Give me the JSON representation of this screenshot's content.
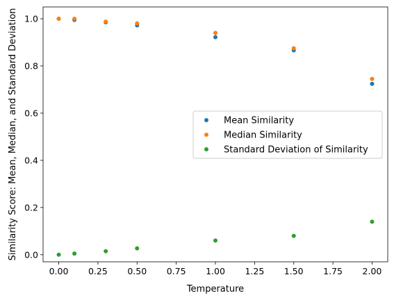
{
  "chart_data": {
    "type": "scatter",
    "title": "",
    "xlabel": "Temperature",
    "ylabel": "Similarity Score: Mean, Median, and Standard Deviation",
    "xlim": [
      -0.1,
      2.1
    ],
    "ylim": [
      -0.03,
      1.05
    ],
    "xticks": [
      "0.00",
      "0.25",
      "0.50",
      "0.75",
      "1.00",
      "1.25",
      "1.50",
      "1.75",
      "2.00"
    ],
    "yticks": [
      "0.0",
      "0.2",
      "0.4",
      "0.6",
      "0.8",
      "1.0"
    ],
    "grid": false,
    "legend_position": "center-right",
    "x": [
      0.0,
      0.1,
      0.3,
      0.5,
      1.0,
      1.5,
      2.0
    ],
    "series": [
      {
        "name": "Mean Similarity",
        "color": "#1f77b4",
        "values": [
          1.0,
          0.995,
          0.985,
          0.972,
          0.922,
          0.866,
          0.724
        ]
      },
      {
        "name": "Median Similarity",
        "color": "#ff7f0e",
        "values": [
          1.0,
          1.0,
          0.988,
          0.98,
          0.94,
          0.875,
          0.745
        ]
      },
      {
        "name": "Standard Deviation of Similarity",
        "color": "#2ca02c",
        "values": [
          0.0,
          0.005,
          0.015,
          0.027,
          0.06,
          0.08,
          0.14
        ]
      }
    ]
  }
}
